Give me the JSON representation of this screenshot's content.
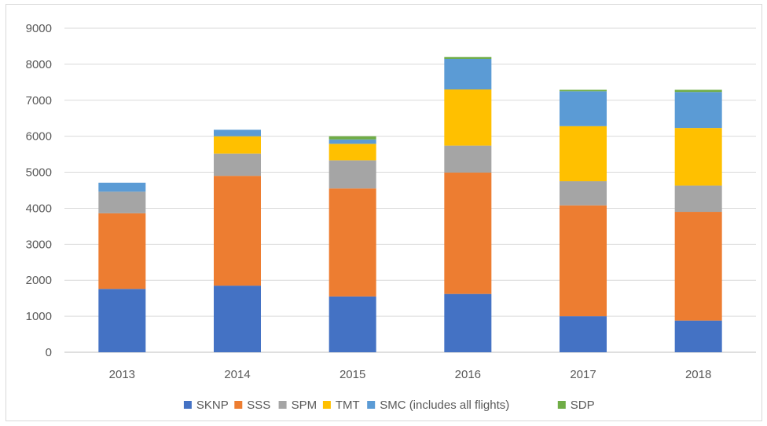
{
  "chart_data": {
    "type": "bar",
    "stacked": true,
    "categories": [
      "2013",
      "2014",
      "2015",
      "2016",
      "2017",
      "2018"
    ],
    "series": [
      {
        "name": "SKNP",
        "color": "#4472c4",
        "values": [
          1760,
          1850,
          1550,
          1620,
          1000,
          880
        ]
      },
      {
        "name": "SSS",
        "color": "#ed7d31",
        "values": [
          2100,
          3050,
          3000,
          3370,
          3080,
          3020
        ]
      },
      {
        "name": "SPM",
        "color": "#a5a5a5",
        "values": [
          600,
          620,
          780,
          750,
          670,
          730
        ]
      },
      {
        "name": "TMT",
        "color": "#ffc000",
        "values": [
          0,
          480,
          460,
          1560,
          1530,
          1600
        ]
      },
      {
        "name": "SMC (includes all flights)",
        "color": "#5b9bd5",
        "values": [
          250,
          180,
          120,
          850,
          970,
          1000
        ]
      },
      {
        "name": "SDP",
        "color": "#70ad47",
        "values": [
          0,
          0,
          90,
          50,
          40,
          60
        ]
      }
    ],
    "y_ticks": [
      "0",
      "1000",
      "2000",
      "3000",
      "4000",
      "5000",
      "6000",
      "7000",
      "8000",
      "9000"
    ],
    "ylim": [
      0,
      9000
    ],
    "grid": true,
    "legend_position": "bottom",
    "title": "",
    "xlabel": "",
    "ylabel": ""
  }
}
